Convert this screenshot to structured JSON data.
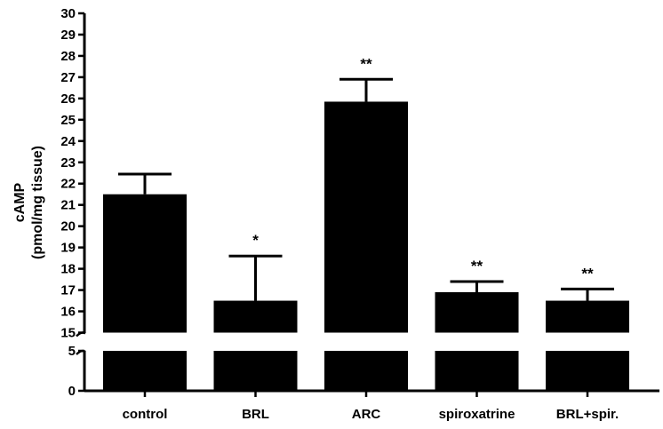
{
  "chart_data": {
    "type": "bar",
    "title": "",
    "xlabel": "",
    "ylabel": [
      "cAMP",
      "(pmol/mg tissue)"
    ],
    "categories": [
      "control",
      "BRL",
      "ARC",
      "spiroxatrine",
      "BRL+spir."
    ],
    "values": [
      21.5,
      16.5,
      25.85,
      16.9,
      16.5
    ],
    "errors": [
      0.95,
      2.1,
      1.05,
      0.5,
      0.55
    ],
    "significance": [
      "",
      "*",
      "**",
      "**",
      "**"
    ],
    "bar_color": "#000000",
    "grid": false,
    "legend": "none",
    "axis_break": true,
    "y_lower_segment": {
      "range": [
        0,
        5
      ],
      "ticks": [
        "0",
        "5"
      ]
    },
    "y_upper_segment": {
      "range": [
        15,
        30
      ],
      "ticks": [
        "15",
        "16",
        "17",
        "18",
        "19",
        "20",
        "21",
        "22",
        "23",
        "24",
        "25",
        "26",
        "27",
        "28",
        "29",
        "30"
      ]
    }
  }
}
